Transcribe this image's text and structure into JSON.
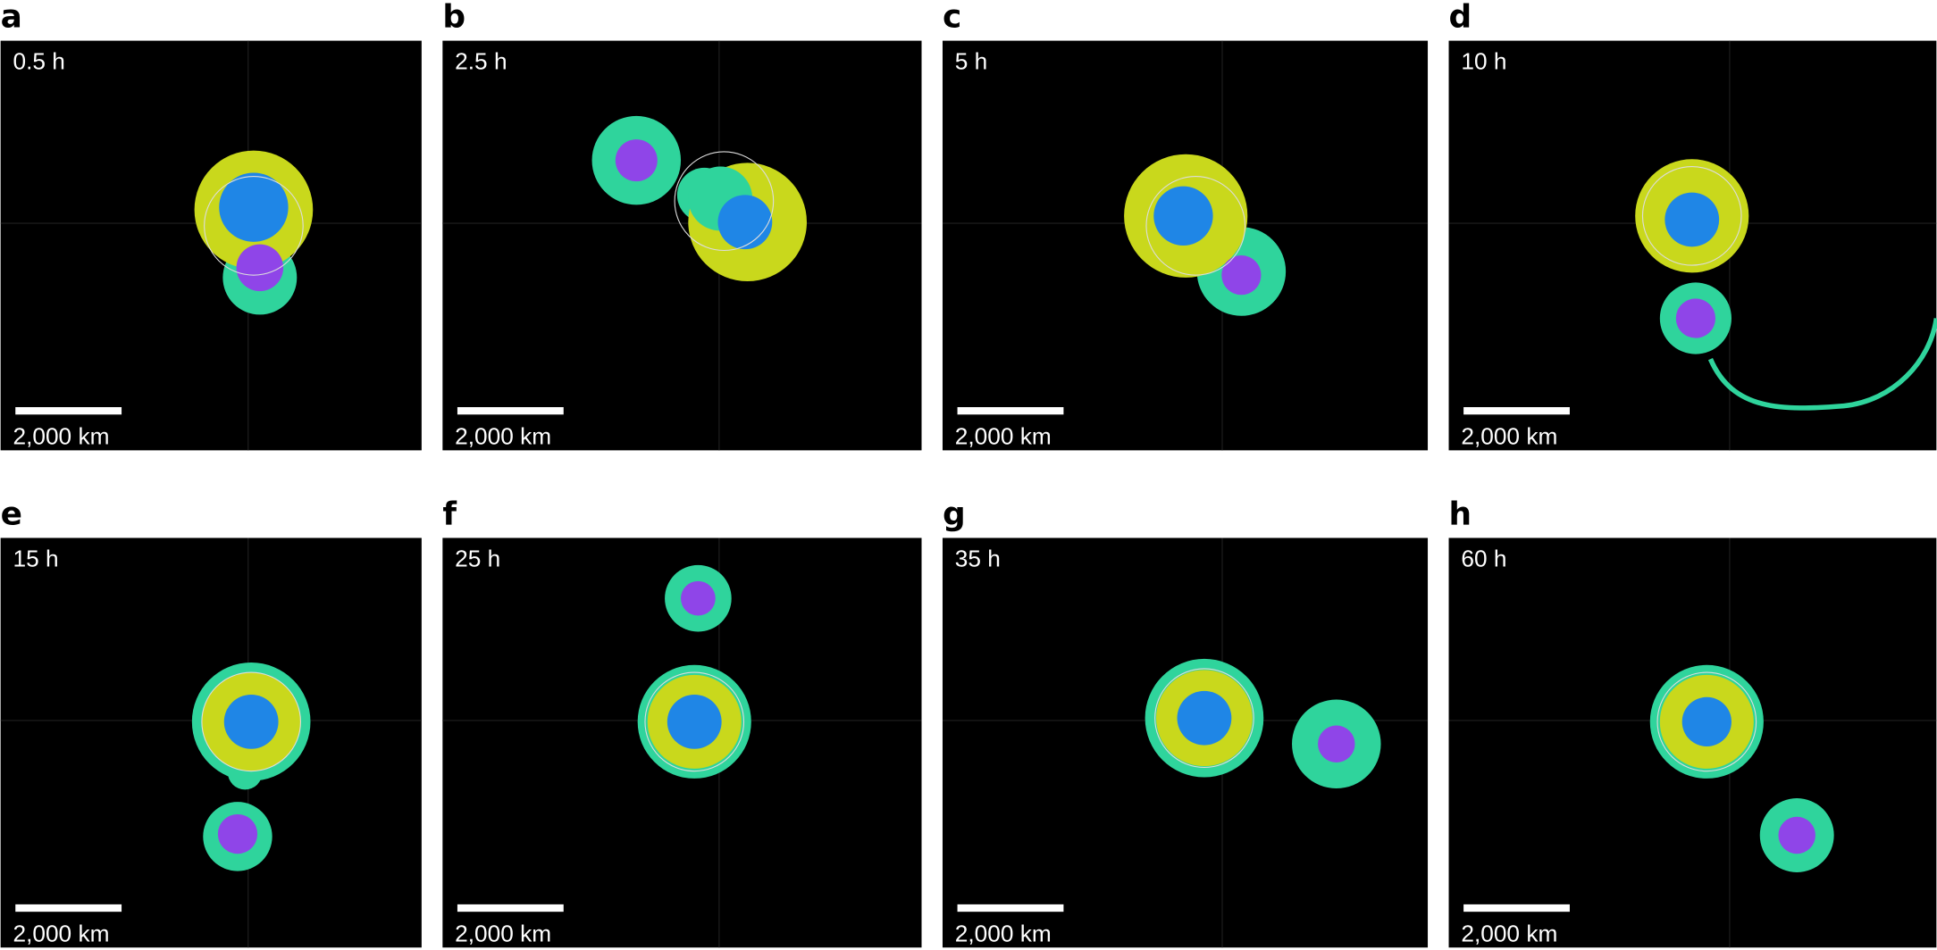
{
  "panels": [
    {
      "letter": "a",
      "time": "0.5 h",
      "scale": "2,000 km"
    },
    {
      "letter": "b",
      "time": "2.5 h",
      "scale": "2,000 km"
    },
    {
      "letter": "c",
      "time": "5 h",
      "scale": "2,000 km"
    },
    {
      "letter": "d",
      "time": "10 h",
      "scale": "2,000 km"
    },
    {
      "letter": "e",
      "time": "15 h",
      "scale": "2,000 km"
    },
    {
      "letter": "f",
      "time": "25 h",
      "scale": "2,000 km"
    },
    {
      "letter": "g",
      "time": "35 h",
      "scale": "2,000 km"
    },
    {
      "letter": "h",
      "time": "60 h",
      "scale": "2,000 km"
    }
  ]
}
